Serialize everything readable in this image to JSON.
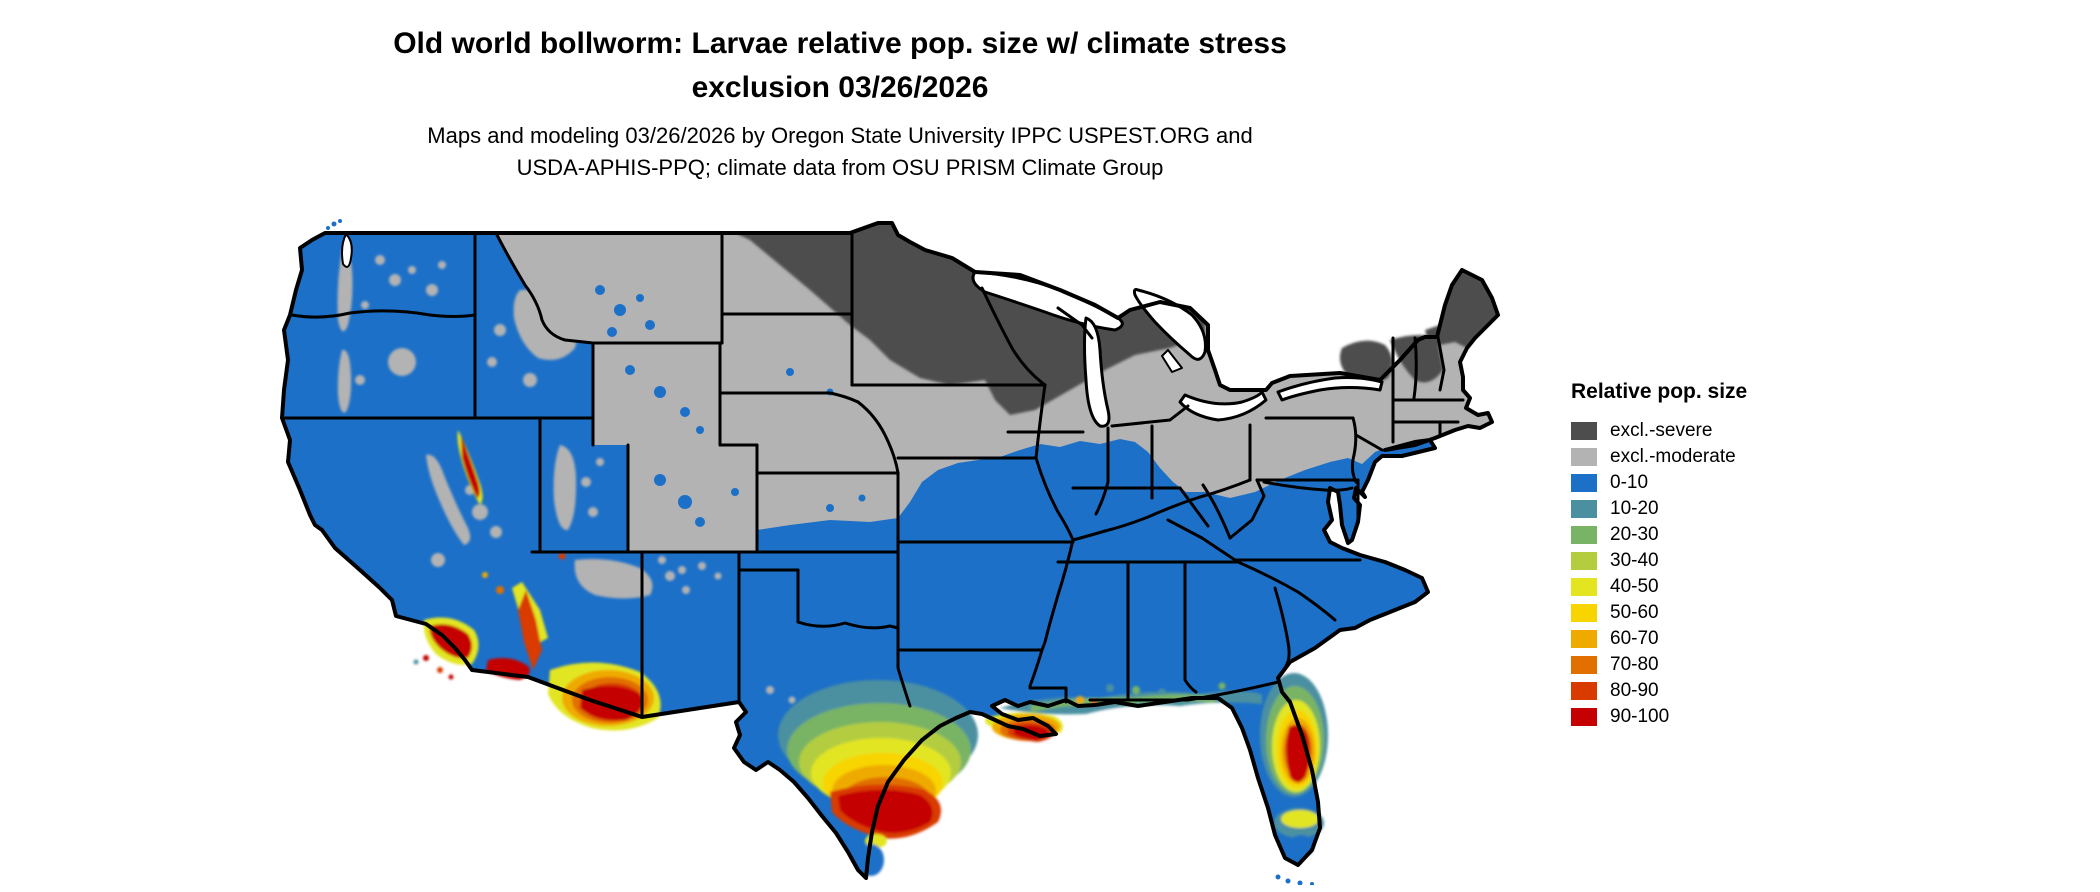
{
  "header": {
    "title_line1": "Old world bollworm: Larvae relative pop. size w/ climate stress",
    "title_line2": "exclusion 03/26/2026",
    "subtitle_line1": "Maps and modeling 03/26/2026 by Oregon State University IPPC USPEST.ORG and",
    "subtitle_line2": "USDA-APHIS-PPQ; climate data from OSU PRISM Climate Group"
  },
  "legend": {
    "title": "Relative pop. size",
    "items": [
      {
        "label": "excl.-severe",
        "color": "#4d4d4d"
      },
      {
        "label": "excl.-moderate",
        "color": "#b3b3b3"
      },
      {
        "label": "0-10",
        "color": "#1c70c8"
      },
      {
        "label": "10-20",
        "color": "#4b90a1"
      },
      {
        "label": "20-30",
        "color": "#79b465"
      },
      {
        "label": "30-40",
        "color": "#b4cd3f"
      },
      {
        "label": "40-50",
        "color": "#e2e520"
      },
      {
        "label": "50-60",
        "color": "#f8d400"
      },
      {
        "label": "60-70",
        "color": "#efaa00"
      },
      {
        "label": "70-80",
        "color": "#e17000"
      },
      {
        "label": "80-90",
        "color": "#d93a00"
      },
      {
        "label": "90-100",
        "color": "#c40000"
      }
    ]
  },
  "map": {
    "name": "Contiguous United States choropleth of old world bollworm larvae relative population size",
    "colors": {
      "excluded_severe": "#4d4d4d",
      "excluded_moderate": "#b3b3b3",
      "pop_0_10_blue": "#1c70c8",
      "state_border": "#000000",
      "water_and_background": "#ffffff"
    },
    "pattern_summary": [
      "Northern tier (northern ND, most of MN, northern WI, upper MI, Adirondacks, northern New England/Maine): excl.-severe dark gray",
      "Central/northern interior (Plains, Midwest, Northeast interior): excl.-moderate light gray",
      "West coast, Great Basin, Southwest, and the South below the Ohio River / mid-Atlantic coast: 0-10 blue",
      "Hot spots (higher relative pop. 40-100): southern/coastal Texas and Gulf coast Louisiana, north-central Florida peninsula, southern Arizona into southeast California, southern California coast"
    ]
  }
}
